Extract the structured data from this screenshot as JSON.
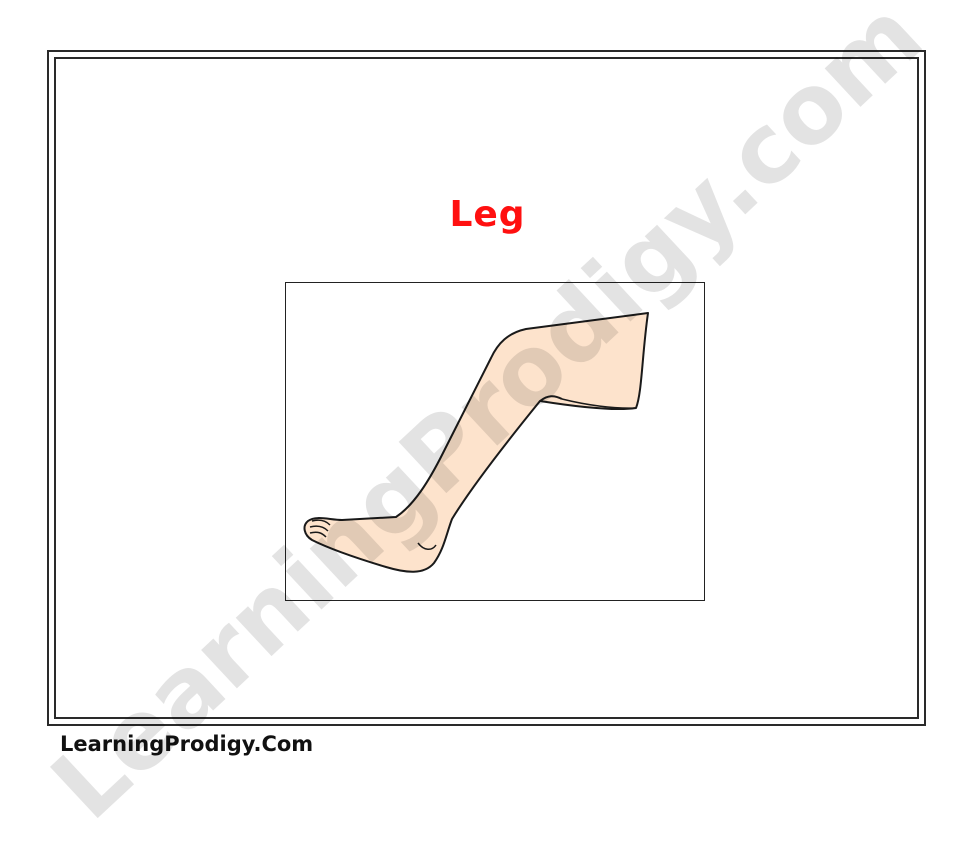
{
  "card": {
    "title": "Leg",
    "image_icon": "leg-illustration",
    "title_color": "#ff1010",
    "skin_color": "#fde3cc"
  },
  "watermark": {
    "text": "LearningProdigy.com"
  },
  "footer": {
    "text": "LearningProdigy.Com"
  }
}
